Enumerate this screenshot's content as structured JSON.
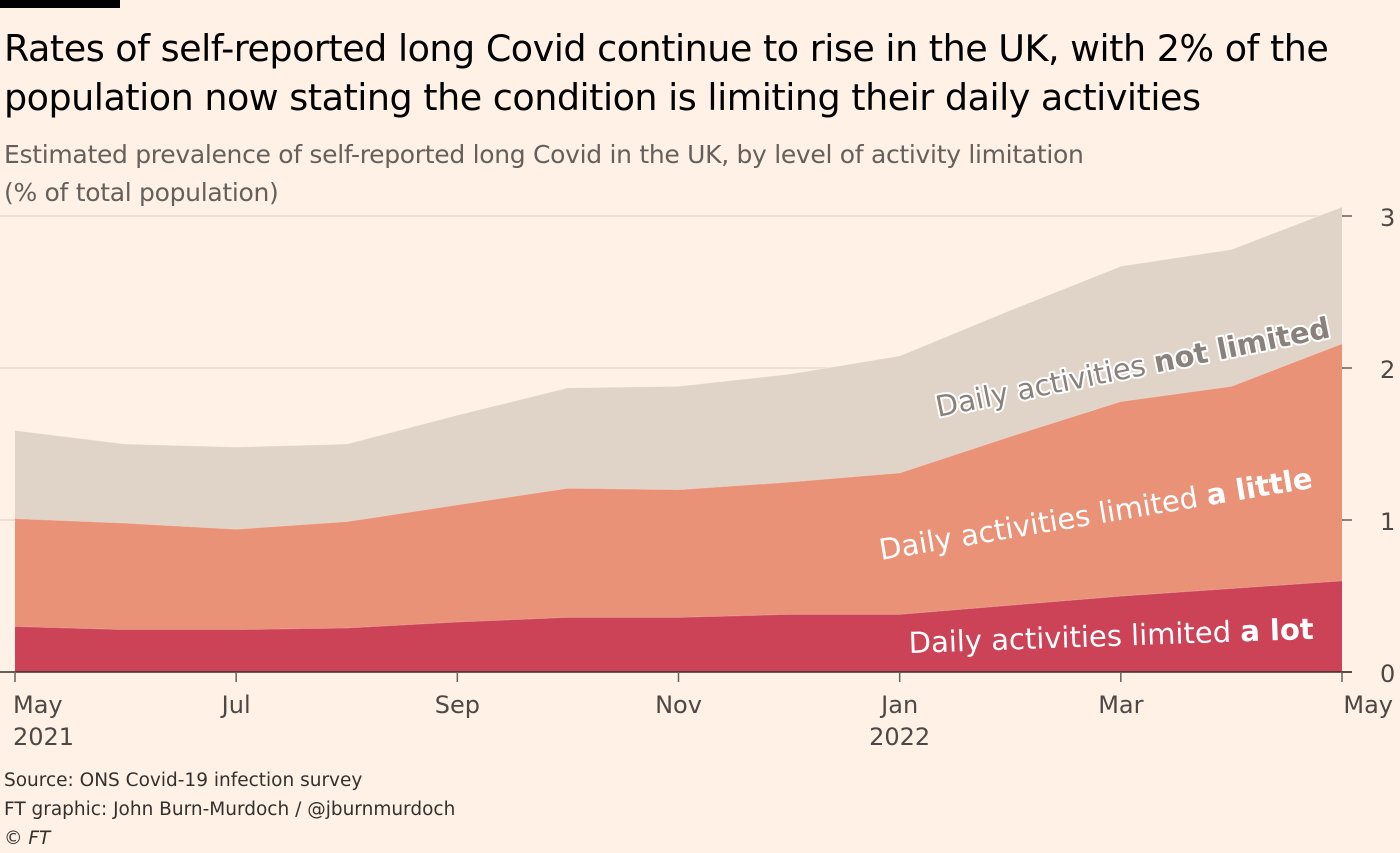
{
  "title": "Rates of self-reported long Covid continue to rise in the UK, with 2% of the population now stating the condition is limiting their daily activities",
  "subtitle_line1": "Estimated prevalence of self-reported long Covid in the UK, by level of activity limitation",
  "subtitle_line2": "(% of total population)",
  "footer": {
    "source": "Source: ONS Covid-19 infection survey",
    "credit": "FT graphic: John Burn-Murdoch / @jburnmurdoch",
    "copyright": "© FT"
  },
  "colors": {
    "background": "#fff1e5",
    "not_limited": "#e0d3c8",
    "limited_little": "#e99277",
    "limited_lot": "#cc4257",
    "axis": "#66605c"
  },
  "chart_data": {
    "type": "area",
    "stacked": true,
    "x_unit": "month index from May 2021",
    "x": [
      0,
      1,
      2,
      3,
      4,
      5,
      6,
      7,
      8,
      9,
      10,
      11,
      12
    ],
    "series": [
      {
        "name": "Daily activities limited a lot",
        "values": [
          0.3,
          0.28,
          0.28,
          0.29,
          0.33,
          0.36,
          0.36,
          0.38,
          0.38,
          0.44,
          0.5,
          0.55,
          0.6
        ]
      },
      {
        "name": "Daily activities limited a little",
        "values": [
          0.71,
          0.7,
          0.66,
          0.7,
          0.77,
          0.85,
          0.84,
          0.87,
          0.93,
          1.11,
          1.28,
          1.33,
          1.56
        ]
      },
      {
        "name": "Daily activities not limited",
        "values": [
          0.58,
          0.52,
          0.54,
          0.51,
          0.59,
          0.66,
          0.68,
          0.71,
          0.77,
          0.83,
          0.89,
          0.9,
          0.9
        ]
      }
    ],
    "ylim": [
      0,
      3
    ],
    "y_ticks": [
      "0",
      "1",
      "2",
      "3"
    ],
    "y_tick_values": [
      0,
      1,
      2,
      3
    ],
    "x_ticks": [
      {
        "x": 0,
        "label": "May",
        "sub": "2021"
      },
      {
        "x": 2,
        "label": "Jul",
        "sub": ""
      },
      {
        "x": 4,
        "label": "Sep",
        "sub": ""
      },
      {
        "x": 6,
        "label": "Nov",
        "sub": ""
      },
      {
        "x": 8,
        "label": "Jan",
        "sub": "2022"
      },
      {
        "x": 10,
        "label": "Mar",
        "sub": ""
      },
      {
        "x": 12,
        "label": "May",
        "sub": ""
      }
    ],
    "annotations": {
      "not_limited": {
        "prefix": "Daily activities ",
        "emph": "not limited"
      },
      "little": {
        "prefix": "Daily activities limited ",
        "emph": "a little"
      },
      "lot": {
        "prefix": "Daily activities limited ",
        "emph": "a lot"
      }
    }
  }
}
